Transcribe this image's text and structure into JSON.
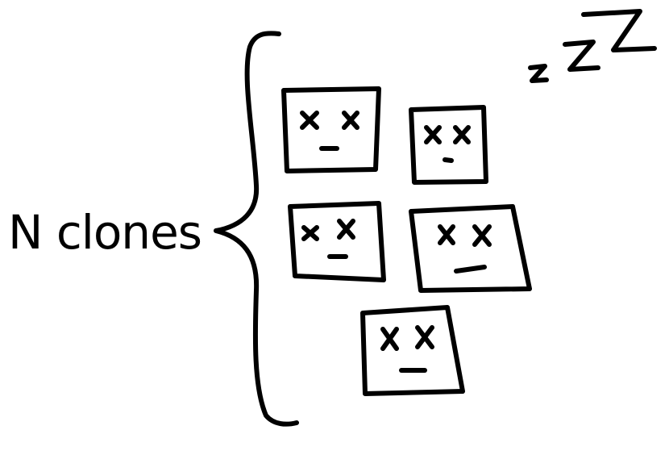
{
  "diagram": {
    "label": "N clones",
    "clone_count_drawn": 5,
    "clone_face": {
      "eyes": "x x",
      "mouth": "_"
    },
    "sleep_text": "zzZ",
    "colors": {
      "ink": "#000000",
      "background": "#ffffff"
    }
  }
}
